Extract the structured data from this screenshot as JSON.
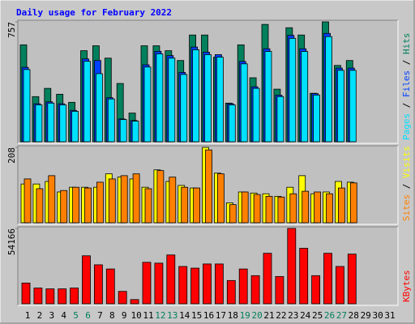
{
  "chart_data": [
    {
      "type": "bar",
      "title": "Daily usage for February 2022",
      "title_color": "#0000ff",
      "ylim": [
        0,
        757
      ],
      "yticks": [
        757
      ],
      "legend_separator": " / ",
      "series": [
        {
          "name": "Hits",
          "color": "#00805c",
          "values": [
            612,
            285,
            337,
            300,
            249,
            575,
            606,
            528,
            368,
            181,
            606,
            606,
            575,
            513,
            674,
            674,
            534,
            244,
            612,
            404,
            741,
            332,
            720,
            674,
            306,
            757,
            482,
            513,
            null,
            null,
            null
          ]
        },
        {
          "name": "Files",
          "color": "#0040ff",
          "values": [
            470,
            240,
            252,
            240,
            198,
            523,
            513,
            278,
            144,
            134,
            486,
            571,
            544,
            438,
            598,
            566,
            550,
            240,
            507,
            347,
            587,
            294,
            672,
            587,
            304,
            684,
            465,
            465,
            null,
            null,
            null
          ]
        },
        {
          "name": "Pages",
          "color": "#00e0ff",
          "values": [
            456,
            233,
            244,
            233,
            192,
            508,
            430,
            270,
            140,
            130,
            472,
            555,
            528,
            425,
            581,
            550,
            534,
            233,
            492,
            337,
            570,
            285,
            653,
            570,
            295,
            664,
            451,
            451,
            null,
            null,
            null
          ]
        }
      ]
    },
    {
      "type": "bar",
      "ylim": [
        0,
        208
      ],
      "yticks": [
        208
      ],
      "legend_separator": " / ",
      "series": [
        {
          "name": "Visits",
          "color": "#ffff00",
          "values": [
            107,
            107,
            114,
            85,
            98,
            98,
            98,
            135,
            126,
            121,
            98,
            146,
            114,
            103,
            96,
            208,
            137,
            55,
            85,
            82,
            80,
            73,
            98,
            130,
            80,
            85,
            114,
            112,
            null,
            null,
            null
          ]
        },
        {
          "name": "Sites",
          "color": "#ff8000",
          "values": [
            121,
            94,
            130,
            89,
            98,
            96,
            112,
            121,
            130,
            135,
            94,
            144,
            126,
            98,
            96,
            201,
            135,
            50,
            85,
            78,
            73,
            71,
            80,
            87,
            85,
            80,
            96,
            110,
            null,
            null,
            null
          ]
        }
      ]
    },
    {
      "type": "bar",
      "ylim": [
        0,
        54166
      ],
      "yticks": [
        54166
      ],
      "categories": [
        "1",
        "2",
        "3",
        "4",
        "5",
        "6",
        "7",
        "8",
        "9",
        "10",
        "11",
        "12",
        "13",
        "14",
        "15",
        "16",
        "17",
        "18",
        "19",
        "20",
        "21",
        "22",
        "23",
        "24",
        "25",
        "26",
        "27",
        "28",
        "29",
        "30",
        "31"
      ],
      "category_colors": [
        "#000000",
        "#000000",
        "#000000",
        "#000000",
        "#00805c",
        "#00805c",
        "#000000",
        "#000000",
        "#000000",
        "#000000",
        "#000000",
        "#00805c",
        "#00805c",
        "#000000",
        "#000000",
        "#000000",
        "#000000",
        "#000000",
        "#00805c",
        "#00805c",
        "#000000",
        "#000000",
        "#000000",
        "#000000",
        "#000000",
        "#00805c",
        "#00805c",
        "#000000",
        "#000000",
        "#000000",
        "#000000"
      ],
      "series": [
        {
          "name": "KBytes",
          "color": "#ff0000",
          "values": [
            14900,
            11300,
            10700,
            10700,
            11300,
            34500,
            28000,
            25000,
            8900,
            3000,
            29800,
            29200,
            35100,
            26800,
            25600,
            28600,
            28600,
            16700,
            25000,
            20200,
            36300,
            19600,
            54166,
            39900,
            20200,
            36300,
            26800,
            35700,
            null,
            null,
            null
          ]
        }
      ]
    }
  ]
}
